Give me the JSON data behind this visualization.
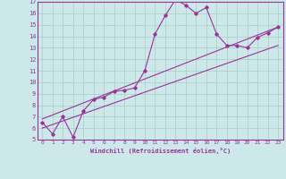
{
  "xlabel": "Windchill (Refroidissement éolien,°C)",
  "background_color": "#cce8e8",
  "grid_color": "#aacccc",
  "line_color": "#993399",
  "xlim": [
    -0.5,
    23.5
  ],
  "ylim": [
    5,
    17
  ],
  "xticks": [
    0,
    1,
    2,
    3,
    4,
    5,
    6,
    7,
    8,
    9,
    10,
    11,
    12,
    13,
    14,
    15,
    16,
    17,
    18,
    19,
    20,
    21,
    22,
    23
  ],
  "yticks": [
    5,
    6,
    7,
    8,
    9,
    10,
    11,
    12,
    13,
    14,
    15,
    16,
    17
  ],
  "line1_x": [
    0,
    1,
    2,
    3,
    4,
    5,
    6,
    7,
    8,
    9,
    10,
    11,
    12,
    13,
    14,
    15,
    16,
    17,
    18,
    19,
    20,
    21,
    22,
    23
  ],
  "line1_y": [
    6.5,
    5.5,
    7.0,
    5.2,
    7.5,
    8.5,
    8.7,
    9.2,
    9.3,
    9.5,
    11.0,
    14.2,
    15.8,
    17.2,
    16.7,
    16.0,
    16.5,
    14.2,
    13.2,
    13.2,
    13.0,
    13.9,
    14.3,
    14.8
  ],
  "line2_x": [
    0,
    23
  ],
  "line2_y": [
    6.0,
    13.2
  ],
  "line3_x": [
    0,
    23
  ],
  "line3_y": [
    6.8,
    14.8
  ]
}
